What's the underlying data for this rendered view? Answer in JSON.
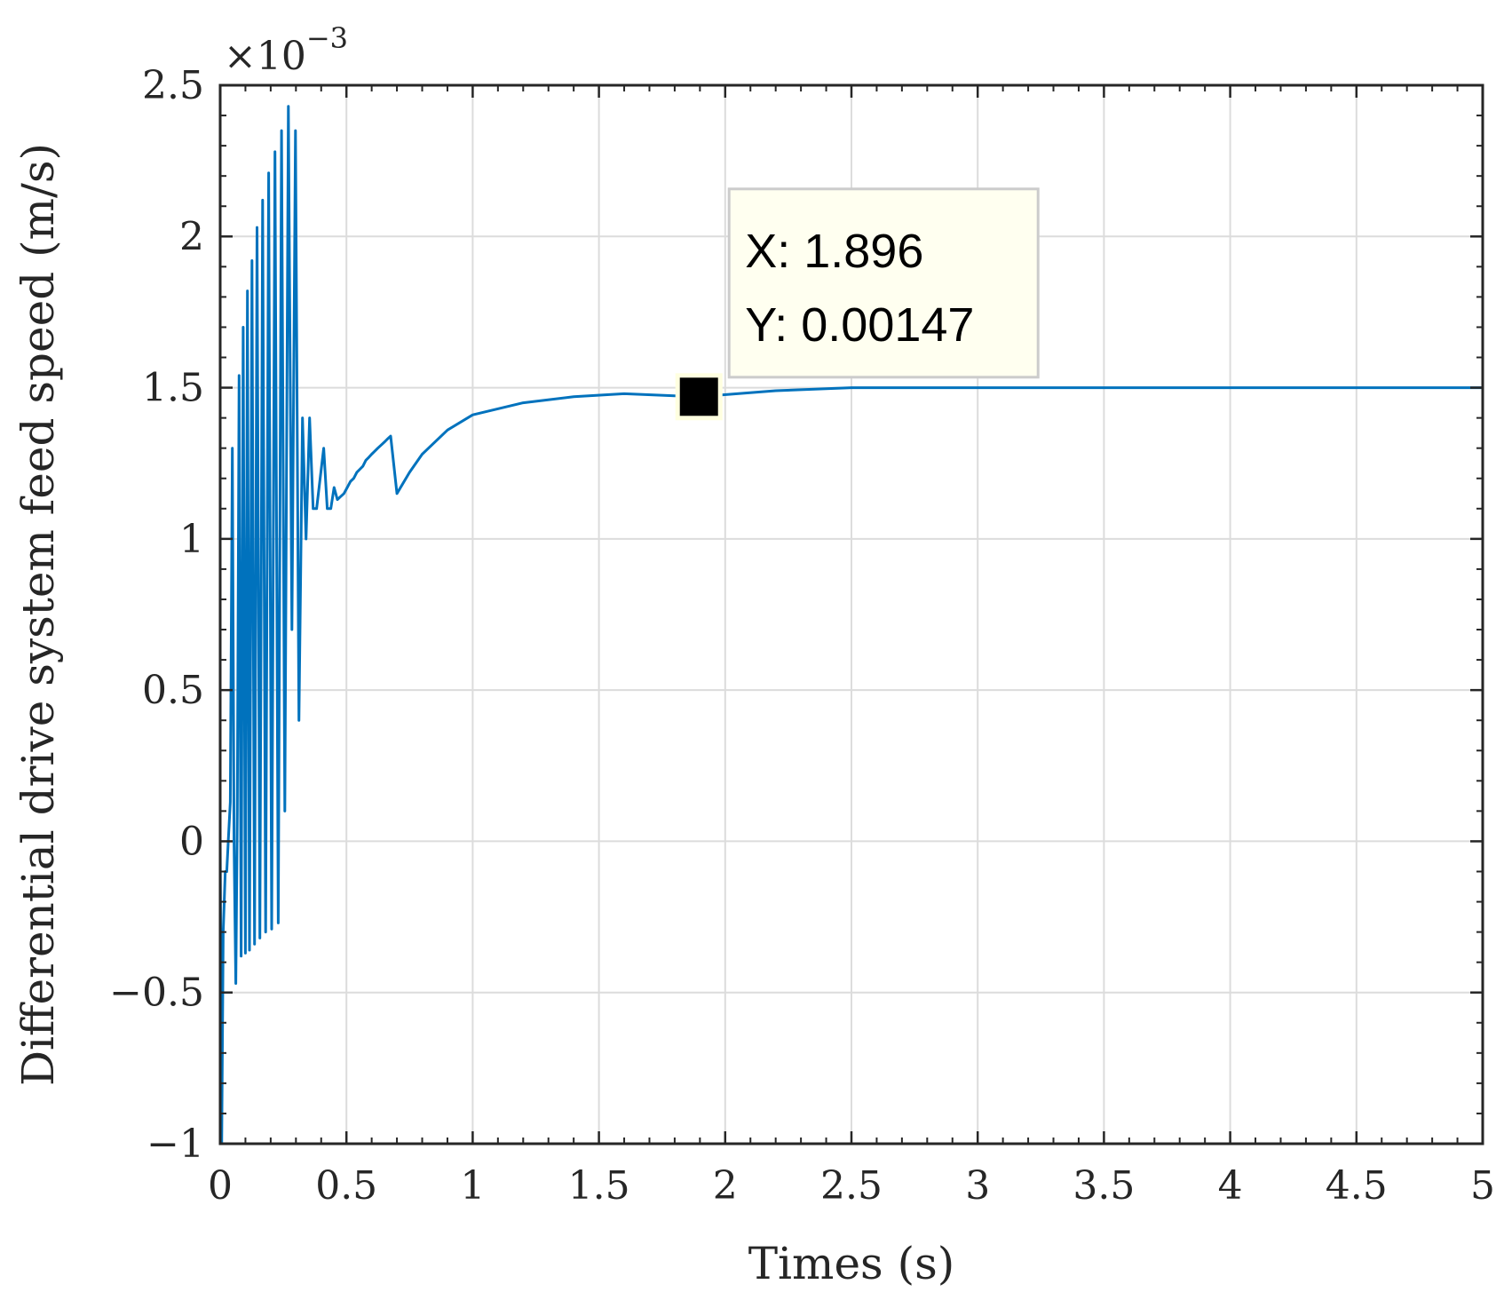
{
  "chart_data": {
    "type": "line",
    "xlabel": "Times (s)",
    "ylabel": "Differential drive system feed speed (m/s)",
    "xlim": [
      0,
      5
    ],
    "ylim": [
      -0.001,
      0.0025
    ],
    "x_ticks": [
      0,
      0.5,
      1,
      1.5,
      2,
      2.5,
      3,
      3.5,
      4,
      4.5,
      5
    ],
    "x_tick_labels": [
      "0",
      "0.5",
      "1",
      "1.5",
      "2",
      "2.5",
      "3",
      "3.5",
      "4",
      "4.5",
      "5"
    ],
    "y_ticks": [
      -0.001,
      -0.0005,
      0,
      0.0005,
      0.001,
      0.0015,
      0.002,
      0.0025
    ],
    "y_tick_labels": [
      "−1",
      "−0.5",
      "0",
      "0.5",
      "1",
      "1.5",
      "2",
      "2.5"
    ],
    "exponent_label": "×10",
    "exponent_power": "−3",
    "grid": true,
    "line_color": "#0072BD",
    "series": [
      {
        "x": [
          0,
          0.006,
          0.012,
          0.02,
          0.026,
          0.032,
          0.04,
          0.048,
          0.055,
          0.062,
          0.068,
          0.075,
          0.083,
          0.091,
          0.1,
          0.108,
          0.116,
          0.126,
          0.136,
          0.146,
          0.157,
          0.168,
          0.18,
          0.192,
          0.204,
          0.217,
          0.23,
          0.243,
          0.256,
          0.27,
          0.284,
          0.298,
          0.312,
          0.326,
          0.34,
          0.354,
          0.368,
          0.382,
          0.396,
          0.41,
          0.424,
          0.438,
          0.451,
          0.464,
          0.477,
          0.49,
          0.503,
          0.516,
          0.529,
          0.541,
          0.553,
          0.565,
          0.577,
          0.589,
          0.6,
          0.612,
          0.624,
          0.637,
          0.65,
          0.662,
          0.675,
          0.7,
          0.75,
          0.8,
          0.9,
          1.0,
          1.2,
          1.4,
          1.6,
          1.896,
          2.2,
          2.5,
          3.0,
          3.5,
          4.0,
          4.5,
          5.0
        ],
        "y": [
          0.0,
          -0.001,
          -0.0003,
          -0.0001,
          -0.0001,
          0.0,
          0.00013,
          0.0013,
          0.0,
          -0.00047,
          0.0001,
          0.00154,
          -0.00038,
          0.0017,
          -0.00037,
          0.00182,
          -0.00036,
          0.00192,
          -0.00034,
          0.00203,
          -0.00032,
          0.00212,
          -0.0003,
          0.00221,
          -0.00029,
          0.00228,
          -0.00027,
          0.00235,
          0.0001,
          0.00243,
          0.0007,
          0.00235,
          0.0004,
          0.0014,
          0.001,
          0.0014,
          0.0011,
          0.0011,
          0.0012,
          0.0013,
          0.0011,
          0.0011,
          0.00117,
          0.00113,
          0.00114,
          0.00115,
          0.00117,
          0.00119,
          0.0012,
          0.00122,
          0.00123,
          0.00124,
          0.00126,
          0.00127,
          0.00128,
          0.00129,
          0.0013,
          0.00131,
          0.00132,
          0.00133,
          0.00134,
          0.00115,
          0.00122,
          0.00128,
          0.00136,
          0.00141,
          0.00145,
          0.00147,
          0.00148,
          0.00147,
          0.00149,
          0.0015,
          0.0015,
          0.0015,
          0.0015,
          0.0015,
          0.0015
        ]
      }
    ],
    "datatip": {
      "x": 1.896,
      "y": 0.00147,
      "x_text": "X: 1.896",
      "y_text": "Y: 0.00147"
    }
  }
}
